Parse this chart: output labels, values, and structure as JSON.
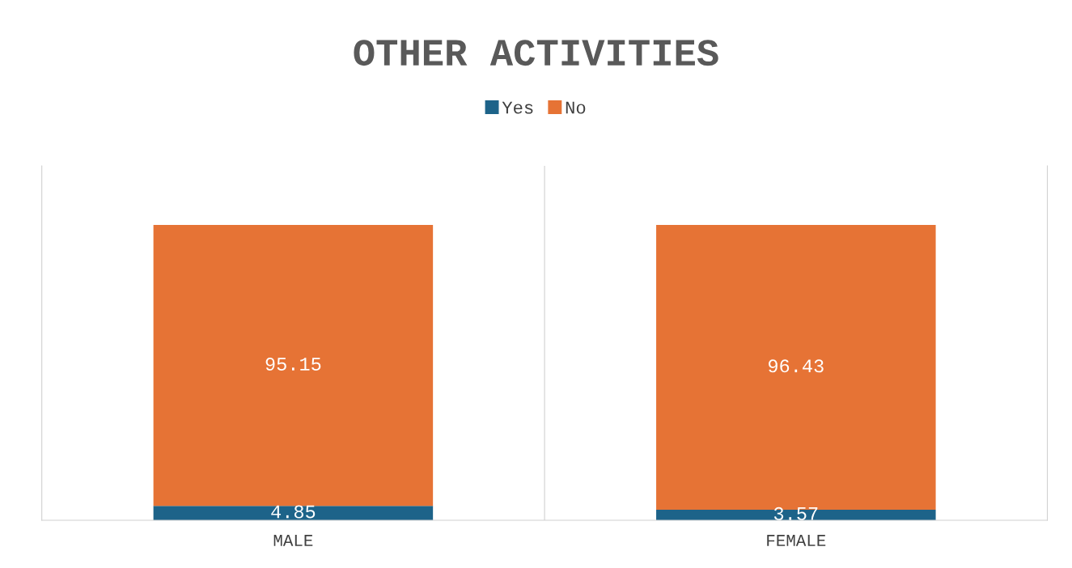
{
  "chart_data": {
    "type": "bar",
    "title": "OTHER ACTIVITIES",
    "categories": [
      "MALE",
      "FEMALE"
    ],
    "stacked": true,
    "series": [
      {
        "name": "Yes",
        "color": "#1d6389",
        "values": [
          4.85,
          3.57
        ]
      },
      {
        "name": "No",
        "color": "#e67335",
        "values": [
          95.15,
          96.43
        ]
      }
    ],
    "ylim": [
      0,
      120
    ],
    "data_labels": true,
    "legend": "top",
    "grid": "x",
    "tick_labels": "x"
  }
}
